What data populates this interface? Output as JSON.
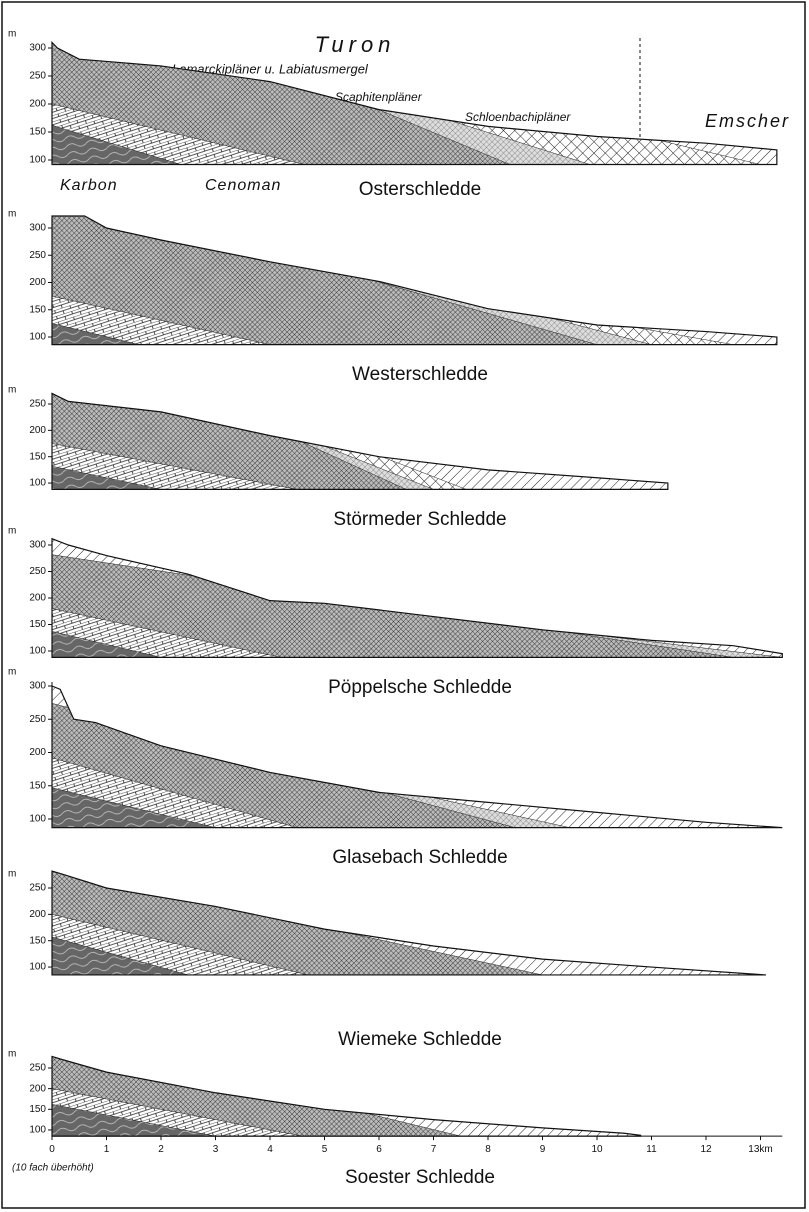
{
  "annotations": {
    "turon": "Turon",
    "lamarck": "Lamarckipläner u. Labiatusmergel",
    "scaphiten": "Scaphitenpläner",
    "schloenbach": "Schloenbachipläner",
    "emscher": "Emscher",
    "karbon": "Karbon",
    "cenoman": "Cenoman"
  },
  "profiles": [
    {
      "title": "Osterschledde",
      "unit": "m",
      "yticks": [
        300,
        250,
        200,
        150,
        100
      ]
    },
    {
      "title": "Westerschledde",
      "unit": "m",
      "yticks": [
        300,
        250,
        200,
        150,
        100
      ]
    },
    {
      "title": "Störmeder Schledde",
      "unit": "m",
      "yticks": [
        250,
        200,
        150,
        100
      ]
    },
    {
      "title": "Pöppelsche Schledde",
      "unit": "m",
      "yticks": [
        300,
        250,
        200,
        150,
        100
      ]
    },
    {
      "title": "Glasebach Schledde",
      "unit": "m",
      "yticks": [
        300,
        250,
        200,
        150,
        100
      ]
    },
    {
      "title": "Wiemeke Schledde",
      "unit": "m",
      "yticks": [
        250,
        200,
        150,
        100
      ]
    },
    {
      "title": "Soester Schledde",
      "unit": "m",
      "yticks": [
        250,
        200,
        150,
        100
      ]
    }
  ],
  "x_axis": {
    "ticks": [
      0,
      1,
      2,
      3,
      4,
      5,
      6,
      7,
      8,
      9,
      10,
      11,
      12,
      {
        "value": 13,
        "label": "13km"
      }
    ],
    "note": "(10 fach überhöht)"
  }
}
